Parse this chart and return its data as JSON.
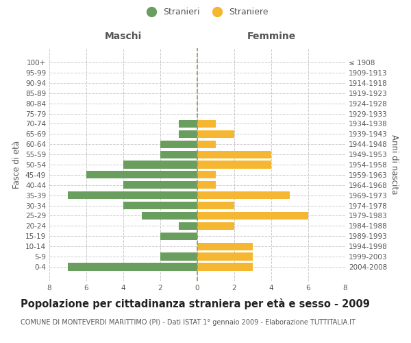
{
  "age_groups": [
    "100+",
    "95-99",
    "90-94",
    "85-89",
    "80-84",
    "75-79",
    "70-74",
    "65-69",
    "60-64",
    "55-59",
    "50-54",
    "45-49",
    "40-44",
    "35-39",
    "30-34",
    "25-29",
    "20-24",
    "15-19",
    "10-14",
    "5-9",
    "0-4"
  ],
  "birth_years": [
    "≤ 1908",
    "1909-1913",
    "1914-1918",
    "1919-1923",
    "1924-1928",
    "1929-1933",
    "1934-1938",
    "1939-1943",
    "1944-1948",
    "1949-1953",
    "1954-1958",
    "1959-1963",
    "1964-1968",
    "1969-1973",
    "1974-1978",
    "1979-1983",
    "1984-1988",
    "1989-1993",
    "1994-1998",
    "1999-2003",
    "2004-2008"
  ],
  "maschi": [
    0,
    0,
    0,
    0,
    0,
    0,
    1,
    1,
    2,
    2,
    4,
    6,
    4,
    7,
    4,
    3,
    1,
    2,
    0,
    2,
    7
  ],
  "femmine": [
    0,
    0,
    0,
    0,
    0,
    0,
    1,
    2,
    1,
    4,
    4,
    1,
    1,
    5,
    2,
    6,
    2,
    0,
    3,
    3,
    3
  ],
  "color_maschi": "#6a9e5e",
  "color_femmine": "#f5b731",
  "background_color": "#ffffff",
  "grid_color": "#cccccc",
  "title": "Popolazione per cittadinanza straniera per età e sesso - 2009",
  "subtitle": "COMUNE DI MONTEVERDI MARITTIMO (PI) - Dati ISTAT 1° gennaio 2009 - Elaborazione TUTTITALIA.IT",
  "ylabel_left": "Fasce di età",
  "ylabel_right": "Anni di nascita",
  "xlabel_left": "Maschi",
  "xlabel_right": "Femmine",
  "legend_maschi": "Stranieri",
  "legend_femmine": "Straniere",
  "xlim": 8,
  "bar_height": 0.75,
  "title_fontsize": 10.5,
  "subtitle_fontsize": 7,
  "axis_label_fontsize": 8.5,
  "tick_fontsize": 7.5,
  "legend_fontsize": 9
}
